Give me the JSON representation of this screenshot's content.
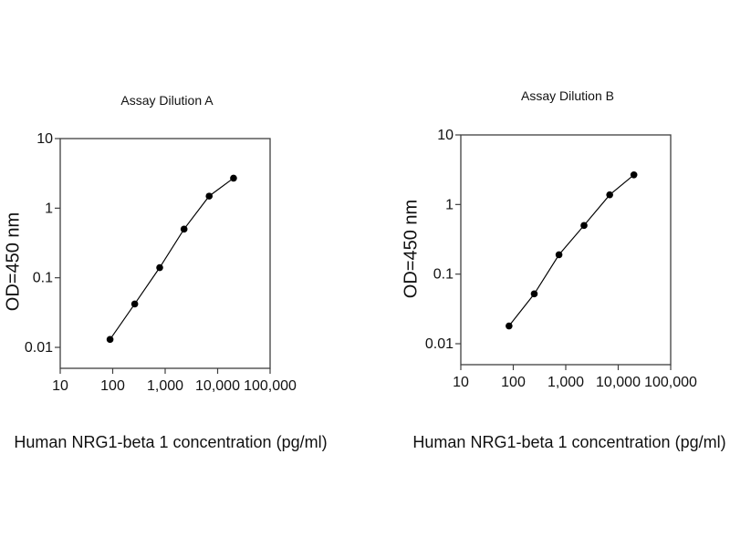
{
  "figure": {
    "background": "#ffffff",
    "text_color": "#111111",
    "axis_color": "#3f3f3f",
    "marker_color": "#000000"
  },
  "chart_data": [
    {
      "type": "line",
      "title": "Assay Dilution A",
      "xlabel": "Human NRG1-beta 1 concentration (pg/ml)",
      "ylabel": "OD=450 nm",
      "xscale": "log",
      "yscale": "log",
      "xlim": [
        10,
        100000
      ],
      "ylim": [
        0.005,
        10
      ],
      "x": [
        89,
        263,
        787,
        2290,
        6900,
        20100
      ],
      "y": [
        0.013,
        0.042,
        0.14,
        0.5,
        1.49,
        2.7
      ],
      "x_tick_values": [
        10,
        100,
        1000,
        10000,
        100000
      ],
      "x_tick_labels": [
        "10",
        "100",
        "1,000",
        "10,000",
        "100,000"
      ],
      "y_tick_values": [
        10,
        1,
        0.1,
        0.01
      ],
      "y_tick_labels": [
        "10",
        "1",
        "0.1",
        "0.01"
      ],
      "grid": false,
      "legend": null,
      "line_color": "#000000",
      "marker": "circle"
    },
    {
      "type": "line",
      "title": "Assay Dilution B",
      "xlabel": "Human NRG1-beta 1 concentration (pg/ml)",
      "ylabel": "OD=450 nm",
      "xscale": "log",
      "yscale": "log",
      "xlim": [
        10,
        100000
      ],
      "ylim": [
        0.005,
        10
      ],
      "x": [
        83,
        251,
        743,
        2230,
        6880,
        19900
      ],
      "y": [
        0.018,
        0.052,
        0.19,
        0.5,
        1.38,
        2.67
      ],
      "x_tick_values": [
        10,
        100,
        1000,
        10000,
        100000
      ],
      "x_tick_labels": [
        "10",
        "100",
        "1,000",
        "10,000",
        "100,000"
      ],
      "y_tick_values": [
        10,
        1,
        0.1,
        0.01
      ],
      "y_tick_labels": [
        "10",
        "1",
        "0.1",
        "0.01"
      ],
      "grid": false,
      "legend": null,
      "line_color": "#000000",
      "marker": "circle"
    }
  ]
}
